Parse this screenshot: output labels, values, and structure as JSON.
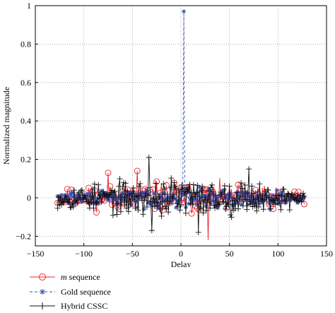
{
  "chart_data": {
    "type": "line",
    "xlabel": "Delay",
    "ylabel": "Normalized magnitude",
    "xlim": [
      -150,
      150
    ],
    "ylim": [
      -0.25,
      1.0
    ],
    "xticks": [
      -150,
      -100,
      -50,
      0,
      50,
      100,
      150
    ],
    "yticks": [
      -0.2,
      0,
      0.2,
      0.4,
      0.6,
      0.8,
      1
    ],
    "xtick_labels": [
      "−150",
      "−100",
      "−50",
      "0",
      "50",
      "100",
      "150"
    ],
    "ytick_labels": [
      "−0.2",
      "0",
      "0.2",
      "0.4",
      "0.6",
      "0.8",
      "1"
    ],
    "grid": true,
    "legend_position": "bottom-left, below plot",
    "x_range": [
      -127,
      127
    ],
    "series": [
      {
        "name_prefix": "m",
        "name_suffix": " sequence",
        "color": "#e8262d",
        "marker": "circle",
        "line": "solid",
        "amplitude": 0.08,
        "notable_points": [
          {
            "x": 3,
            "y": 0.0
          },
          {
            "x": 28,
            "y": -0.22
          },
          {
            "x": -75,
            "y": 0.13
          },
          {
            "x": -45,
            "y": 0.14
          }
        ]
      },
      {
        "name": "Gold sequence",
        "color": "#3a4fb0",
        "marker": "asterisk",
        "line": "dashed",
        "amplitude": 0.05,
        "notable_points": [
          {
            "x": 3,
            "y": 0.97
          },
          {
            "x": -45,
            "y": -0.05
          },
          {
            "x": 92,
            "y": -0.06
          }
        ]
      },
      {
        "name": "Hybrid CSSC",
        "color": "#111111",
        "marker": "plus",
        "line": "solid",
        "amplitude": 0.1,
        "notable_points": [
          {
            "x": -33,
            "y": 0.21
          },
          {
            "x": -30,
            "y": -0.17
          },
          {
            "x": 18,
            "y": -0.18
          },
          {
            "x": 70,
            "y": 0.15
          }
        ]
      }
    ]
  }
}
